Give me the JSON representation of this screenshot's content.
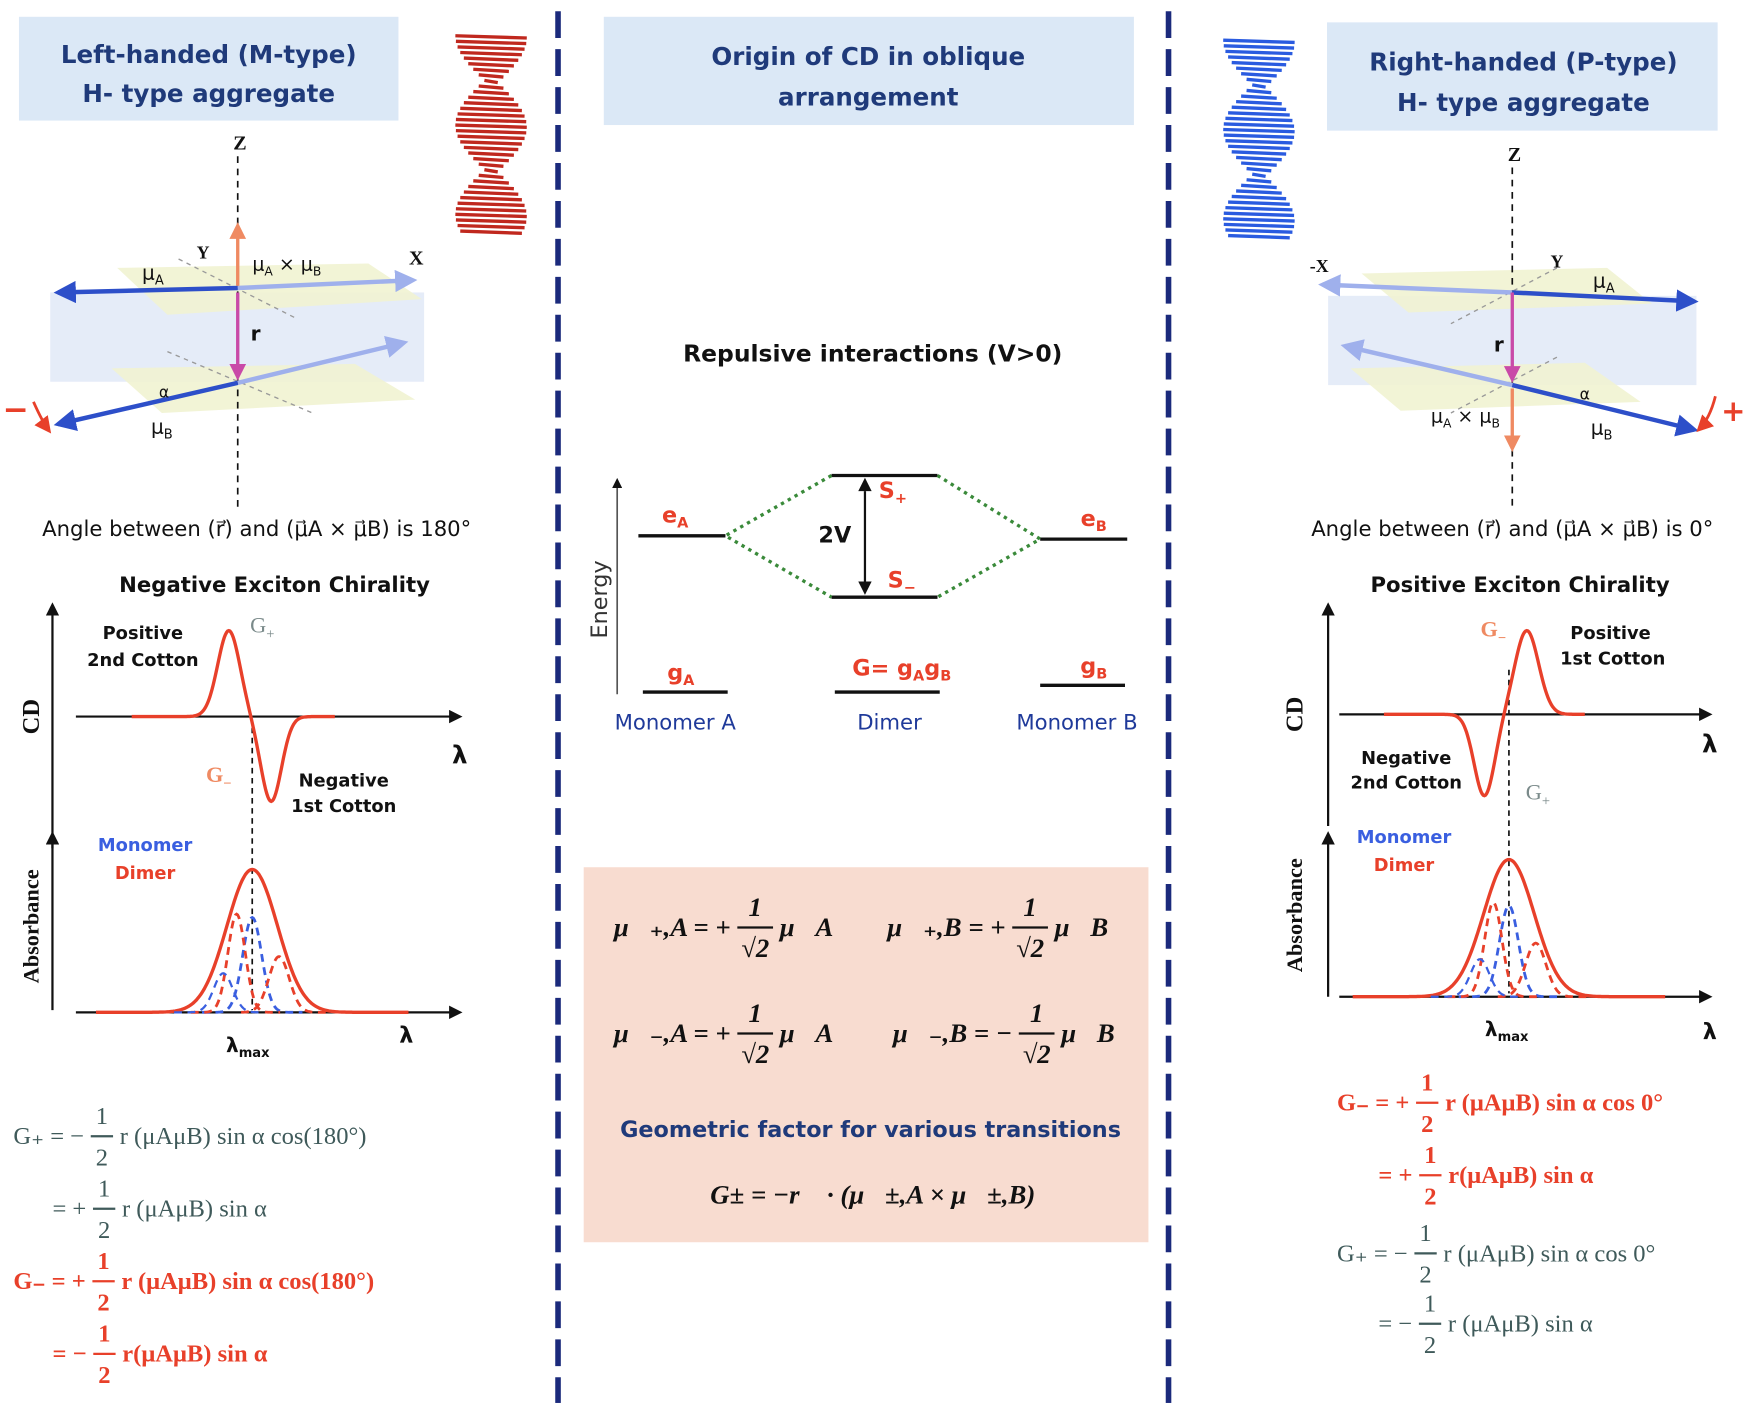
{
  "left": {
    "title": [
      "Left-handed (M-type)",
      "H- type aggregate"
    ],
    "axis_z": "Z",
    "axis_y": "Y",
    "axis_x": "X",
    "mu_a": [
      "μ",
      "A"
    ],
    "mu_b": [
      "μ",
      "B"
    ],
    "cross": [
      "μ",
      "A",
      " × μ",
      "B"
    ],
    "r": "r",
    "alpha": "α",
    "sign": "−",
    "angle": "Angle between (r⃗) and (μ⃗A × μ⃗B) is 180°",
    "chirality": "Negative Exciton Chirality",
    "cd": {
      "ylabel": "CD",
      "xlabel": "λ",
      "peak_label": [
        "Positive",
        "2nd Cotton"
      ],
      "trough_label": [
        "Negative",
        "1st Cotton"
      ],
      "peak_g": [
        "G",
        "+"
      ],
      "trough_g": [
        "G",
        "−"
      ]
    },
    "abs": {
      "ylabel": "Absorbance",
      "xlabel": "λ",
      "lambda_max": [
        "λ",
        "max"
      ],
      "legend": [
        "Monomer",
        "Dimer"
      ]
    },
    "equations": [
      [
        "G₊ = −",
        "1",
        "2",
        "r (μAμB) sin α cos(180°)"
      ],
      [
        "= +",
        "1",
        "2",
        "r (μAμB) sin α"
      ],
      [
        "G₋ = +",
        "1",
        "2",
        "r (μAμB) sin α cos(180°)"
      ],
      [
        "= −",
        "1",
        "2",
        "r(μAμB) sin α"
      ]
    ]
  },
  "center": {
    "title": [
      "Origin of CD in oblique",
      "arrangement"
    ],
    "subtitle": "Repulsive interactions (V>0)",
    "energy": "Energy",
    "e_a": [
      "e",
      "A"
    ],
    "e_b": [
      "e",
      "B"
    ],
    "s_plus": [
      "S",
      "+"
    ],
    "s_minus": [
      "S",
      "−"
    ],
    "two_v": "2V",
    "g_a": [
      "g",
      "A"
    ],
    "g_b": [
      "g",
      "B"
    ],
    "g_dimer": [
      "G= g",
      "A",
      "g",
      "B"
    ],
    "columns": [
      "Monomer A",
      "Dimer",
      "Monomer B"
    ],
    "moments": [
      [
        "μ⃗₊,A = +",
        "1",
        "√2",
        "μ⃗A"
      ],
      [
        "μ⃗₊,B = +",
        "1",
        "√2",
        "μ⃗B"
      ],
      [
        "μ⃗₋,A = +",
        "1",
        "√2",
        "μ⃗A"
      ],
      [
        "μ⃗₋,B = −",
        "1",
        "√2",
        "μ⃗B"
      ]
    ],
    "geometric_title": "Geometric factor for various transitions",
    "geometric_eq": "G± = −r⃗ · (μ⃗±,A × μ⃗±,B)"
  },
  "right": {
    "title": [
      "Right-handed (P-type)",
      "H- type aggregate"
    ],
    "axis_z": "Z",
    "axis_y": "Y",
    "axis_x": "-X",
    "mu_a": [
      "μ",
      "A"
    ],
    "mu_b": [
      "μ",
      "B"
    ],
    "cross": [
      "μ",
      "A",
      " × μ",
      "B"
    ],
    "r": "r",
    "alpha": "α",
    "sign": "+",
    "angle": "Angle between (r⃗) and (μ⃗A × μ⃗B) is 0°",
    "chirality": "Positive Exciton Chirality",
    "cd": {
      "ylabel": "CD",
      "xlabel": "λ",
      "peak_label": [
        "Positive",
        "1st Cotton"
      ],
      "trough_label": [
        "Negative",
        "2nd Cotton"
      ],
      "peak_g": [
        "G",
        "−"
      ],
      "trough_g": [
        "G",
        "+"
      ]
    },
    "abs": {
      "ylabel": "Absorbance",
      "xlabel": "λ",
      "lambda_max": [
        "λ",
        "max"
      ],
      "legend": [
        "Monomer",
        "Dimer"
      ]
    },
    "equations": [
      [
        "G₋ = +",
        "1",
        "2",
        "r (μAμB) sin α cos 0°"
      ],
      [
        "= +",
        "1",
        "2",
        "r(μAμB) sin α"
      ],
      [
        "G₊ = −",
        "1",
        "2",
        "r (μAμB) sin α cos 0°"
      ],
      [
        "= −",
        "1",
        "2",
        "r (μAμB) sin α"
      ]
    ]
  }
}
